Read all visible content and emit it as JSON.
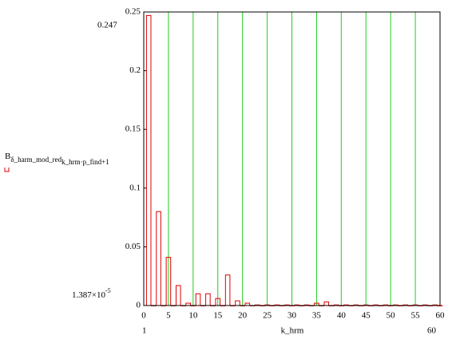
{
  "chart_data": {
    "type": "bar",
    "xlabel": "k_hrm",
    "ylabel": "B",
    "ylabel_subscript": "δ_harm_mod_red",
    "ylabel_subscript2": "k_hrm·p_find+1",
    "ymax_label": "0.247",
    "ymin_label": "1.387×10",
    "ymin_label_exp": "-5",
    "xmin_label": "1",
    "xmax_label": "60",
    "color": "#e00000",
    "grid_color": "#22cc22",
    "x": [
      1,
      2,
      3,
      4,
      5,
      6,
      7,
      8,
      9,
      10,
      11,
      12,
      13,
      14,
      15,
      16,
      17,
      18,
      19,
      20,
      21,
      22,
      23,
      24,
      25,
      26,
      27,
      28,
      29,
      30,
      31,
      32,
      33,
      34,
      35,
      36,
      37,
      38,
      39,
      40,
      41,
      42,
      43,
      44,
      45,
      46,
      47,
      48,
      49,
      50,
      51,
      52,
      53,
      54,
      55,
      56,
      57,
      58,
      59,
      60
    ],
    "values": [
      0.247,
      0,
      0.08,
      0,
      0.041,
      0,
      0.017,
      0,
      0.002,
      0,
      0.01,
      0,
      0.01,
      0,
      0.006,
      0,
      0.026,
      0,
      0.004,
      0,
      0.002,
      0,
      0.0005,
      0,
      0.0005,
      0,
      0.0005,
      0,
      0.0005,
      0,
      0.0005,
      0,
      0.0005,
      0,
      0.002,
      0,
      0.003,
      0,
      0.0005,
      0,
      0.0005,
      0,
      0.0005,
      0,
      0.0005,
      0,
      0.0005,
      0,
      0.0005,
      0,
      0.0005,
      0,
      0.0005,
      0,
      0.0005,
      0,
      0.0005,
      0,
      0.0005,
      0
    ],
    "xlim": [
      0,
      60
    ],
    "ylim": [
      0,
      0.25
    ],
    "xticks": [
      0,
      5,
      10,
      15,
      20,
      25,
      30,
      35,
      40,
      45,
      50,
      55,
      60
    ],
    "yticks": [
      0,
      0.05,
      0.1,
      0.15,
      0.2,
      0.25
    ],
    "grid": true
  }
}
